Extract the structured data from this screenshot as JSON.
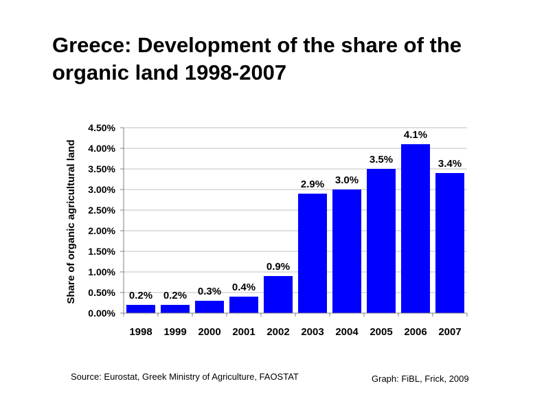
{
  "title": "Greece: Development of the share of the organic land 1998-2007",
  "source": "Source: Eurostat, Greek Ministry of Agriculture, FAOSTAT",
  "credit": "Graph:  FiBL, Frick, 2009",
  "colors": {
    "bar": "#0000FF",
    "grid": "#c0c0c0",
    "axis": "#808080"
  },
  "chart_data": {
    "type": "bar",
    "title": "Greece: Development of the share of the organic land 1998-2007",
    "xlabel": "",
    "ylabel": "Share of organic agricultural land",
    "ylim": [
      0,
      0.045
    ],
    "yticks": [
      "0.00%",
      "0.50%",
      "1.00%",
      "1.50%",
      "2.00%",
      "2.50%",
      "3.00%",
      "3.50%",
      "4.00%",
      "4.50%"
    ],
    "categories": [
      "1998",
      "1999",
      "2000",
      "2001",
      "2002",
      "2003",
      "2004",
      "2005",
      "2006",
      "2007"
    ],
    "values": [
      0.002,
      0.002,
      0.003,
      0.004,
      0.009,
      0.029,
      0.03,
      0.035,
      0.041,
      0.034
    ],
    "data_labels": [
      "0.2%",
      "0.2%",
      "0.3%",
      "0.4%",
      "0.9%",
      "2.9%",
      "3.0%",
      "3.5%",
      "4.1%",
      "3.4%"
    ],
    "grid": true,
    "legend": "none"
  }
}
